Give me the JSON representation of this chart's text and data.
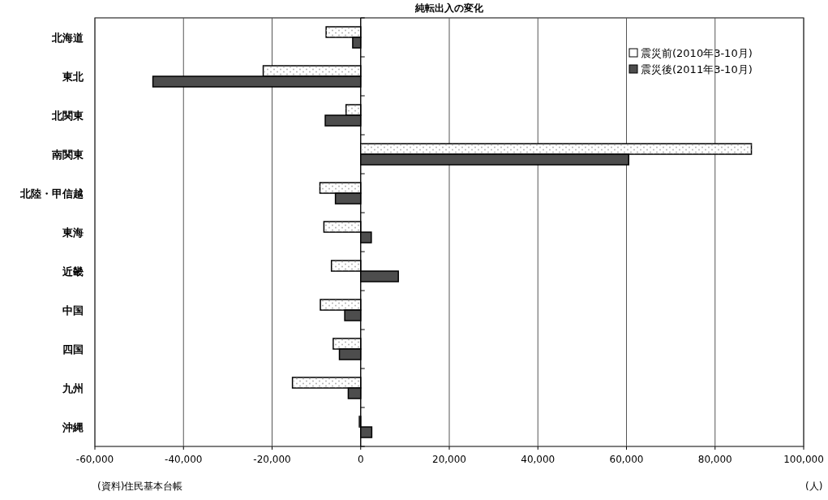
{
  "chart_data": {
    "type": "bar",
    "orientation": "horizontal",
    "title": "純転出入の変化",
    "categories": [
      "北海道",
      "東北",
      "北関東",
      "南関東",
      "北陸・甲信越",
      "東海",
      "近畿",
      "中国",
      "四国",
      "九州",
      "沖縄"
    ],
    "series": [
      {
        "name": "震災前(2010年3-10月)",
        "color": "#ffffff",
        "values": [
          -7800,
          -22000,
          -3300,
          88200,
          -9200,
          -8300,
          -6600,
          -9100,
          -6200,
          -15400,
          -300
        ]
      },
      {
        "name": "震災後(2011年3-10月)",
        "color": "#4d4d4d",
        "values": [
          -1800,
          -46900,
          -8000,
          60500,
          -5700,
          2400,
          8500,
          -3600,
          -4800,
          -2800,
          2500
        ]
      }
    ],
    "xlim": [
      -60000,
      100000
    ],
    "xticks": [
      {
        "value": -60000,
        "label": "-60,000"
      },
      {
        "value": -40000,
        "label": "-40,000"
      },
      {
        "value": -20000,
        "label": "-20,000"
      },
      0,
      {
        "value": 20000,
        "label": "20,000"
      },
      {
        "value": 40000,
        "label": "40,000"
      },
      {
        "value": 60000,
        "label": "60,000"
      },
      {
        "value": 80000,
        "label": "80,000"
      },
      {
        "value": 100000,
        "label": "100,000"
      }
    ],
    "grid": "x",
    "legend": "top right",
    "annotations": [
      "(資料)住民基本台帳",
      "(人)"
    ]
  }
}
